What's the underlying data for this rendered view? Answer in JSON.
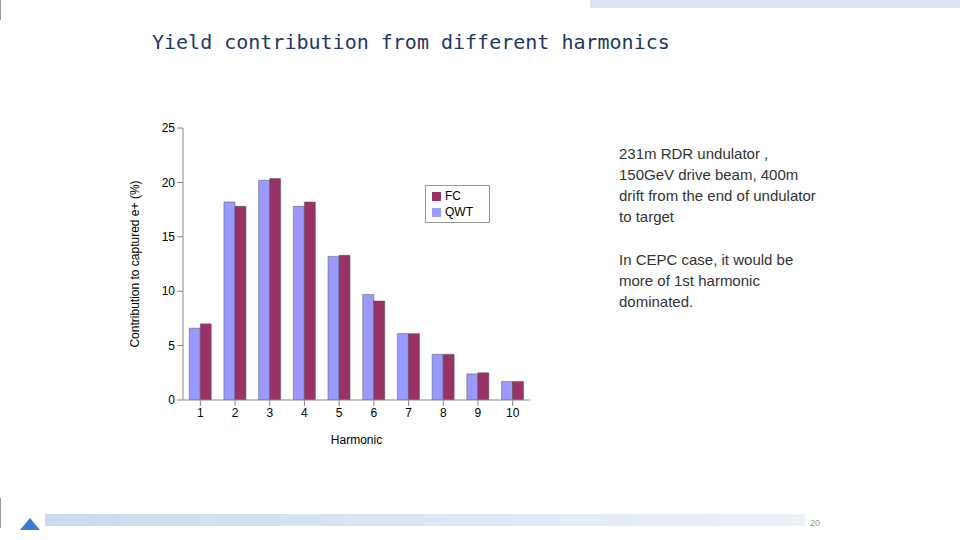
{
  "slide": {
    "title": "Yield contribution from different harmonics",
    "notes": [
      "231m RDR undulator , 150GeV drive beam, 400m drift from the end of undulator to target",
      "In CEPC case, it would be more of 1st harmonic dominated."
    ],
    "page": "20"
  },
  "chart_data": {
    "type": "bar",
    "x_label": "Harmonic",
    "y_label": "Contribution to captured e+ (%)",
    "categories": [
      "1",
      "2",
      "3",
      "4",
      "5",
      "6",
      "7",
      "8",
      "9",
      "10"
    ],
    "series": [
      {
        "name": "QWT",
        "color": "#9999ff",
        "values": [
          6.6,
          18.2,
          20.2,
          17.8,
          13.2,
          9.7,
          6.1,
          4.2,
          2.4,
          1.7
        ]
      },
      {
        "name": "FC",
        "color": "#993366",
        "values": [
          7.0,
          17.8,
          20.35,
          18.2,
          13.3,
          9.1,
          6.1,
          4.2,
          2.5,
          1.7
        ]
      }
    ],
    "ylim": [
      0,
      25
    ],
    "yticks": [
      0,
      5,
      10,
      15,
      20,
      25
    ],
    "grid": false,
    "legend": "right"
  }
}
